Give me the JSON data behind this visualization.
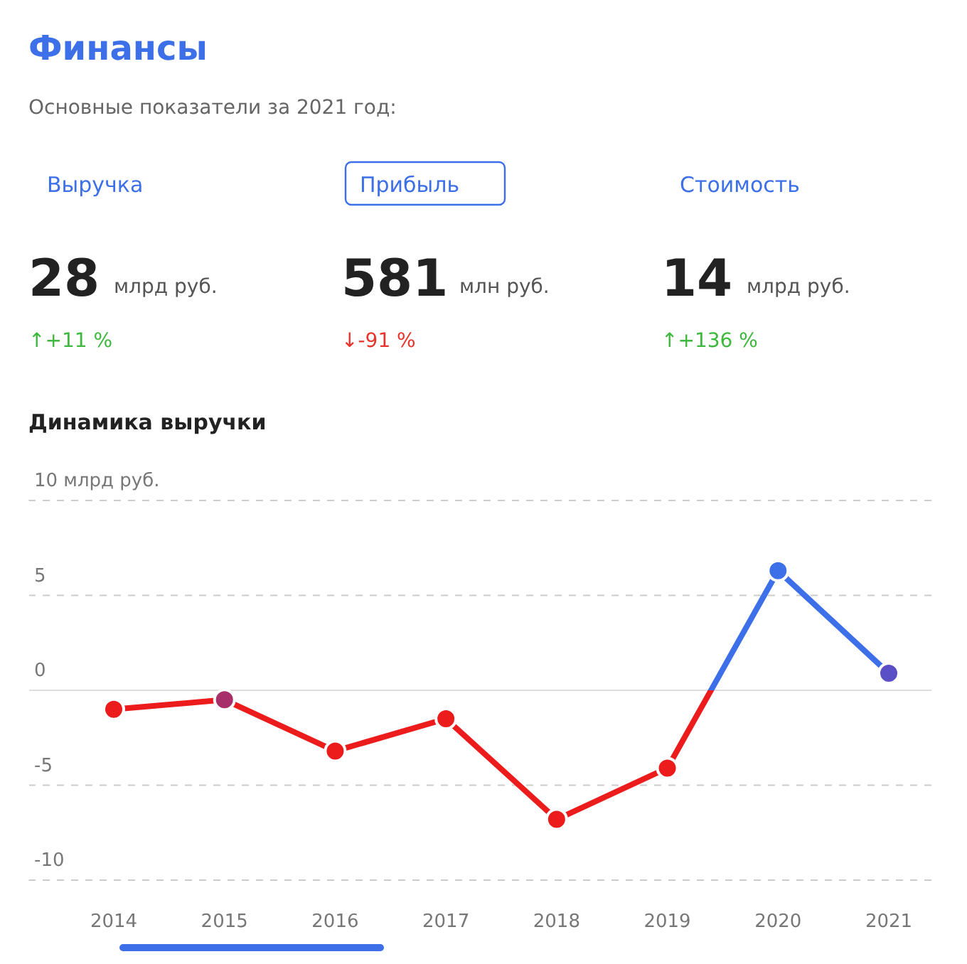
{
  "chart_data": [
    {
      "type": "other",
      "title": "Финансы",
      "subtitle": "Основные показатели за 2021 год:",
      "annotations": [
        "Выручка",
        "28",
        "млрд руб.",
        "↑+11 %",
        "Прибыль",
        "581",
        "млн руб.",
        "↓-91 %",
        "Стоимость",
        "14",
        "млрд руб.",
        "↑+136 %"
      ],
      "colors": [
        "#3cb83c",
        "#e8332a",
        "#3cb83c"
      ]
    },
    {
      "type": "line",
      "title": "Динамика выручки",
      "categories": [
        "2014",
        "2015",
        "2016",
        "2017",
        "2018",
        "2019",
        "2020",
        "2021"
      ],
      "series": [
        {
          "color": "#ec1c1c",
          "values": [
            -1.0,
            -0.5,
            -3.2,
            -1.5,
            -6.8,
            -4.1,
            6.3,
            0.9
          ],
          "colors": [
            "#ec1c1c",
            "#a8306a",
            "#ec1c1c",
            "#ec1c1c",
            "#ec1c1c",
            "#ec1c1c",
            "#3d6fe8",
            "#5a4fc4"
          ]
        }
      ],
      "ylim": [
        -10,
        10
      ],
      "yticks": [
        {
          "value": 10,
          "label": "10 млрд руб."
        },
        5,
        0,
        -5,
        -10
      ],
      "grid": "y",
      "marker": "circle",
      "line_style": "solid"
    }
  ]
}
